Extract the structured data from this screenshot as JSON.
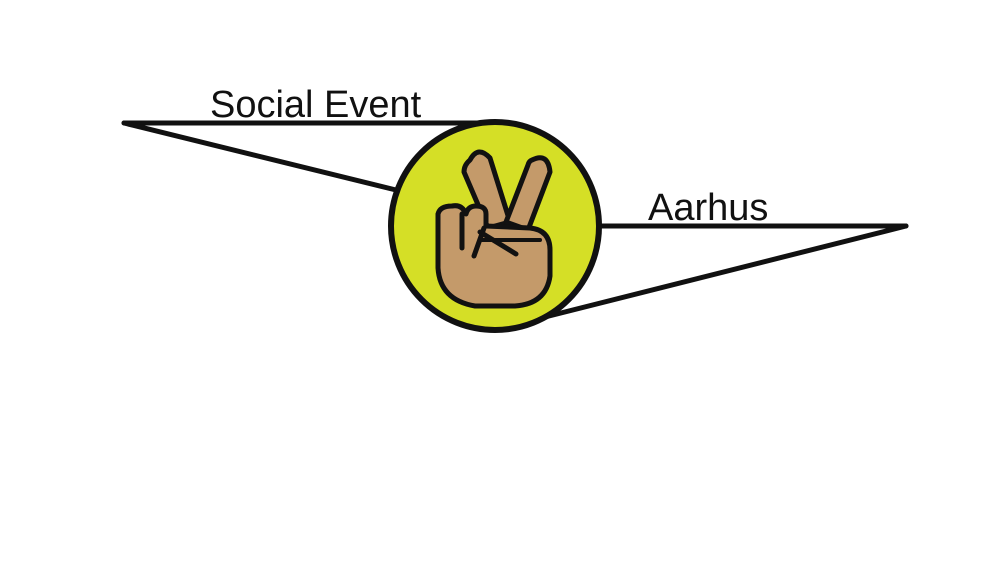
{
  "logo": {
    "left_label": "Social Event",
    "right_label": "Aarhus",
    "emblem_icon": "victory-hand-icon",
    "colors": {
      "badge_fill": "#d5df26",
      "hand_fill": "#c49a6a",
      "outline": "#111111",
      "background": "#ffffff"
    }
  }
}
